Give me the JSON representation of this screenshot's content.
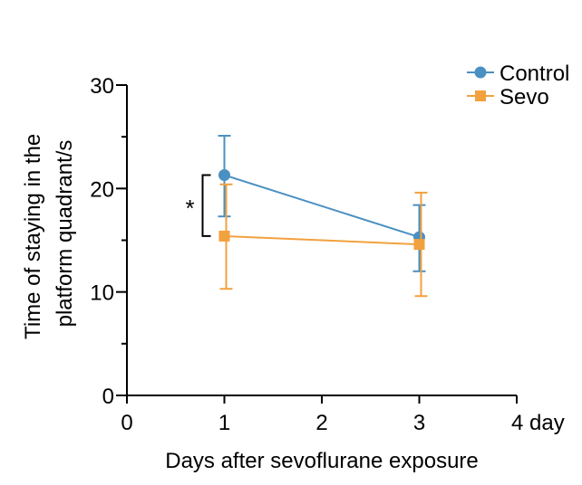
{
  "chart_data": {
    "type": "line",
    "xlabel": "Days after sevoflurane exposure",
    "ylabel_lines": [
      "Time of staying in the",
      "platform quadrant/s"
    ],
    "xlim": [
      0,
      4
    ],
    "ylim": [
      0,
      30
    ],
    "x_ticks": [
      {
        "value": 0,
        "label": "0"
      },
      {
        "value": 1,
        "label": "1"
      },
      {
        "value": 2,
        "label": "2"
      },
      {
        "value": 3,
        "label": "3"
      },
      {
        "value": 4,
        "label": "4 day"
      }
    ],
    "y_ticks": [
      {
        "value": 0,
        "label": "0"
      },
      {
        "value": 10,
        "label": "10"
      },
      {
        "value": 20,
        "label": "20"
      },
      {
        "value": 30,
        "label": "30"
      }
    ],
    "grid": false,
    "legend_position": "top-right",
    "series": [
      {
        "name": "Control",
        "color": "#4a90c2",
        "marker": "circle",
        "points": [
          {
            "x": 1,
            "y": 21.3,
            "err_low": 17.3,
            "err_high": 25.1
          },
          {
            "x": 3,
            "y": 15.3,
            "err_low": 12.0,
            "err_high": 18.4
          }
        ]
      },
      {
        "name": "Sevo",
        "color": "#f2a13f",
        "marker": "square",
        "points": [
          {
            "x": 1,
            "y": 15.4,
            "err_low": 10.3,
            "err_high": 20.4
          },
          {
            "x": 3,
            "y": 14.6,
            "err_low": 9.6,
            "err_high": 19.6
          }
        ]
      }
    ],
    "annotations": [
      {
        "type": "significance-bracket",
        "x": 1,
        "y_from": 15.4,
        "y_to": 21.3,
        "label": "*"
      }
    ]
  }
}
